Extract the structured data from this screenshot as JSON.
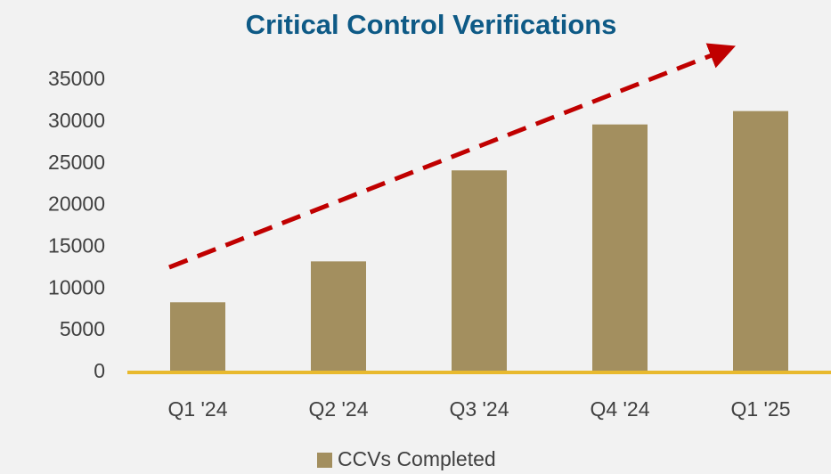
{
  "chart_data": {
    "type": "bar",
    "title": "Critical Control Verifications",
    "categories": [
      "Q1 '24",
      "Q2 '24",
      "Q3 '24",
      "Q4 '24",
      "Q1 '25"
    ],
    "series": [
      {
        "name": "CCVs Completed",
        "color": "#a38f5f",
        "values": [
          8400,
          13300,
          24200,
          29700,
          31300
        ]
      }
    ],
    "ylim": [
      0,
      35000
    ],
    "yticks": [
      0,
      5000,
      10000,
      15000,
      20000,
      25000,
      30000,
      35000
    ],
    "grid": false,
    "legend": "bottom"
  }
}
